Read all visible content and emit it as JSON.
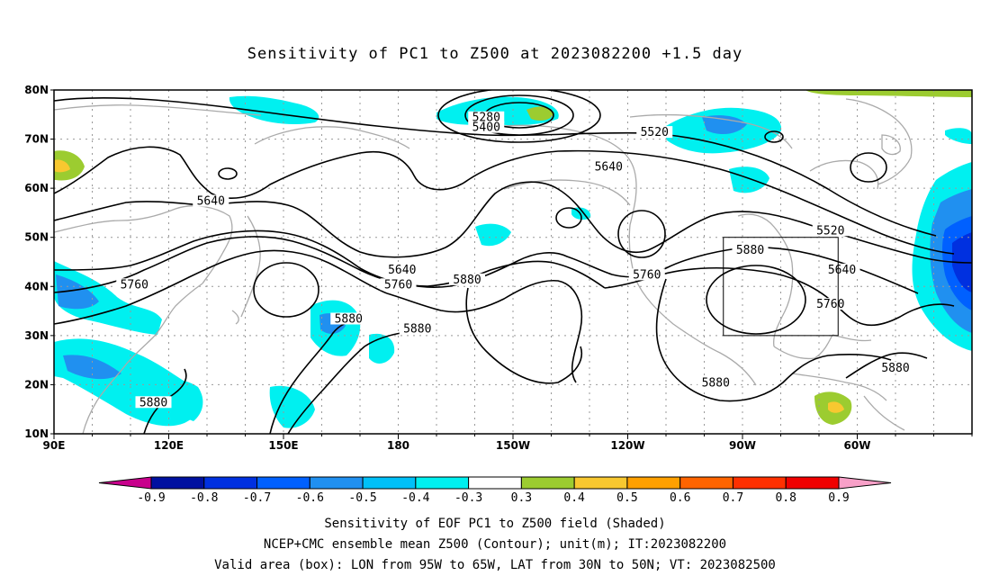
{
  "title": "Sensitivity of PC1 to Z500 at 2023082200 +1.5 day",
  "map": {
    "extent": {
      "lon_min": 90,
      "lon_max": 330,
      "lat_min": 10,
      "lat_max": 80
    },
    "lat_ticks": [
      {
        "lat": 80,
        "label": "80N"
      },
      {
        "lat": 70,
        "label": "70N"
      },
      {
        "lat": 60,
        "label": "60N"
      },
      {
        "lat": 50,
        "label": "50N"
      },
      {
        "lat": 40,
        "label": "40N"
      },
      {
        "lat": 30,
        "label": "30N"
      },
      {
        "lat": 20,
        "label": "20N"
      },
      {
        "lat": 10,
        "label": "10N"
      }
    ],
    "lon_ticks": [
      {
        "lon": 90,
        "label": "90E"
      },
      {
        "lon": 120,
        "label": "120E"
      },
      {
        "lon": 150,
        "label": "150E"
      },
      {
        "lon": 180,
        "label": "180"
      },
      {
        "lon": 210,
        "label": "150W"
      },
      {
        "lon": 240,
        "label": "120W"
      },
      {
        "lon": 270,
        "label": "90W"
      },
      {
        "lon": 300,
        "label": "60W"
      }
    ],
    "valid_box": {
      "lon_min": 265,
      "lon_max": 295,
      "lat_min": 30,
      "lat_max": 50
    },
    "contour_labels": [
      {
        "text": "5280",
        "lon": 203,
        "lat": 74
      },
      {
        "text": "5400",
        "lon": 203,
        "lat": 72
      },
      {
        "text": "5520",
        "lon": 247,
        "lat": 71
      },
      {
        "text": "5640",
        "lon": 235,
        "lat": 64
      },
      {
        "text": "5640",
        "lon": 131,
        "lat": 57
      },
      {
        "text": "5640",
        "lon": 181,
        "lat": 43
      },
      {
        "text": "5760",
        "lon": 111,
        "lat": 40
      },
      {
        "text": "5760",
        "lon": 180,
        "lat": 40
      },
      {
        "text": "5880",
        "lon": 198,
        "lat": 41
      },
      {
        "text": "5760",
        "lon": 245,
        "lat": 42
      },
      {
        "text": "5880",
        "lon": 272,
        "lat": 47
      },
      {
        "text": "5520",
        "lon": 293,
        "lat": 51
      },
      {
        "text": "5640",
        "lon": 296,
        "lat": 43
      },
      {
        "text": "5760",
        "lon": 293,
        "lat": 36
      },
      {
        "text": "5880",
        "lon": 167,
        "lat": 33
      },
      {
        "text": "5880",
        "lon": 185,
        "lat": 31
      },
      {
        "text": "5880",
        "lon": 116,
        "lat": 16
      },
      {
        "text": "5880",
        "lon": 263,
        "lat": 20
      },
      {
        "text": "5880",
        "lon": 310,
        "lat": 23
      }
    ]
  },
  "colorbar": {
    "levels": [
      "-0.9",
      "-0.8",
      "-0.7",
      "-0.6",
      "-0.5",
      "-0.4",
      "-0.3",
      "0.3",
      "0.4",
      "0.5",
      "0.6",
      "0.7",
      "0.8",
      "0.9"
    ],
    "colors": [
      "#c8008c",
      "#0010a0",
      "#0030e0",
      "#0060ff",
      "#2090f0",
      "#00c0f8",
      "#00f0f0",
      "#ffffff",
      "#9ccc30",
      "#f8c830",
      "#ffa000",
      "#ff6400",
      "#ff3000",
      "#f00000",
      "#f8a0c8"
    ]
  },
  "captions": {
    "line1": "Sensitivity of EOF PC1 to Z500 field (Shaded)",
    "line2": "NCEP+CMC ensemble mean Z500 (Contour); unit(m); IT:2023082200",
    "line3": "Valid area (box): LON from 95W to 65W, LAT from 30N to 50N; VT: 2023082500"
  }
}
